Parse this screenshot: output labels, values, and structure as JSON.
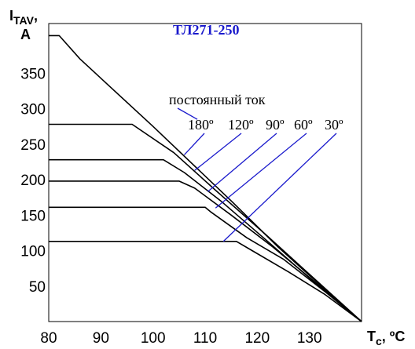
{
  "chart_data": {
    "type": "line",
    "title": "ТЛ271-250",
    "ylabel": {
      "main": "I",
      "sub": "TAV",
      "suffix": ",",
      "line2": "A"
    },
    "xlabel": {
      "main": "T",
      "sub": "c",
      "suffix": ", ºC"
    },
    "xlim": [
      80,
      140
    ],
    "ylim": [
      0,
      420
    ],
    "grid": false,
    "x_ticks": [
      80,
      90,
      100,
      110,
      120,
      130
    ],
    "y_ticks": [
      50,
      100,
      150,
      200,
      250,
      300,
      350
    ],
    "series": [
      {
        "name": "постоянный ток",
        "points": [
          [
            80,
            403
          ],
          [
            82,
            403
          ],
          [
            86,
            370
          ],
          [
            100,
            275
          ],
          [
            115,
            170
          ],
          [
            124,
            105
          ],
          [
            130,
            65
          ],
          [
            140,
            0
          ]
        ]
      },
      {
        "name": "180º",
        "points": [
          [
            80,
            278
          ],
          [
            96,
            278
          ],
          [
            104,
            238
          ],
          [
            112,
            185
          ],
          [
            122,
            120
          ],
          [
            131,
            60
          ],
          [
            140,
            0
          ]
        ]
      },
      {
        "name": "120º",
        "points": [
          [
            80,
            228
          ],
          [
            102,
            228
          ],
          [
            106,
            210
          ],
          [
            113,
            170
          ],
          [
            122,
            113
          ],
          [
            131,
            55
          ],
          [
            140,
            0
          ]
        ]
      },
      {
        "name": "90º",
        "points": [
          [
            80,
            198
          ],
          [
            105,
            198
          ],
          [
            108,
            188
          ],
          [
            115,
            150
          ],
          [
            123,
            105
          ],
          [
            132,
            50
          ],
          [
            140,
            0
          ]
        ]
      },
      {
        "name": "60º",
        "points": [
          [
            80,
            161
          ],
          [
            110,
            161
          ],
          [
            111,
            155
          ],
          [
            118,
            118
          ],
          [
            125,
            88
          ],
          [
            133,
            42
          ],
          [
            140,
            0
          ]
        ]
      },
      {
        "name": "30º",
        "points": [
          [
            80,
            113
          ],
          [
            116,
            113
          ],
          [
            119,
            100
          ],
          [
            126,
            70
          ],
          [
            133,
            38
          ],
          [
            140,
            0
          ]
        ]
      }
    ],
    "annotations": [
      {
        "text": "постоянный ток",
        "target": [
          108.5,
          285
        ]
      },
      {
        "text": "180º",
        "target": [
          106,
          235
        ]
      },
      {
        "text": "120º",
        "target": [
          108,
          213
        ]
      },
      {
        "text": "90º",
        "target": [
          110.5,
          183
        ]
      },
      {
        "text": "60º",
        "target": [
          112,
          160
        ]
      },
      {
        "text": "30º",
        "target": [
          113.5,
          113
        ]
      }
    ]
  }
}
